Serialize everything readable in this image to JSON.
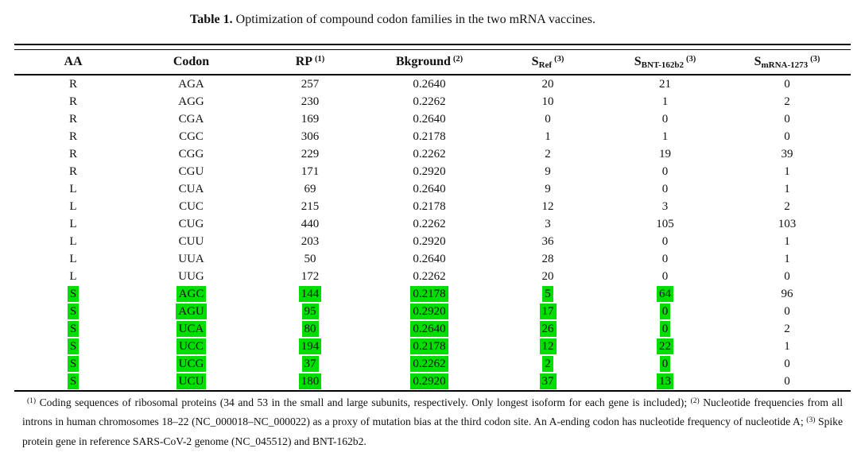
{
  "caption": {
    "label": "Table 1.",
    "text": " Optimization of compound codon families in the two mRNA vaccines."
  },
  "table": {
    "highlight_color": "#00dd00",
    "headers": [
      {
        "label": "AA"
      },
      {
        "label": "Codon"
      },
      {
        "label": "RP",
        "sup": "(1)"
      },
      {
        "label": "Bkground",
        "sup": "(2)"
      },
      {
        "label": "S",
        "sub": "Ref",
        "sup": "(3)"
      },
      {
        "label": "S",
        "sub": "BNT-162b2",
        "sup": "(3)"
      },
      {
        "label": "S",
        "sub": "mRNA-1273",
        "sup": "(3)"
      }
    ],
    "rows": [
      {
        "highlight": false,
        "cells": [
          "R",
          "AGA",
          "257",
          "0.2640",
          "20",
          "21",
          "0"
        ]
      },
      {
        "highlight": false,
        "cells": [
          "R",
          "AGG",
          "230",
          "0.2262",
          "10",
          "1",
          "2"
        ]
      },
      {
        "highlight": false,
        "cells": [
          "R",
          "CGA",
          "169",
          "0.2640",
          "0",
          "0",
          "0"
        ]
      },
      {
        "highlight": false,
        "cells": [
          "R",
          "CGC",
          "306",
          "0.2178",
          "1",
          "1",
          "0"
        ]
      },
      {
        "highlight": false,
        "cells": [
          "R",
          "CGG",
          "229",
          "0.2262",
          "2",
          "19",
          "39"
        ]
      },
      {
        "highlight": false,
        "cells": [
          "R",
          "CGU",
          "171",
          "0.2920",
          "9",
          "0",
          "1"
        ]
      },
      {
        "highlight": false,
        "cells": [
          "L",
          "CUA",
          "69",
          "0.2640",
          "9",
          "0",
          "1"
        ]
      },
      {
        "highlight": false,
        "cells": [
          "L",
          "CUC",
          "215",
          "0.2178",
          "12",
          "3",
          "2"
        ]
      },
      {
        "highlight": false,
        "cells": [
          "L",
          "CUG",
          "440",
          "0.2262",
          "3",
          "105",
          "103"
        ]
      },
      {
        "highlight": false,
        "cells": [
          "L",
          "CUU",
          "203",
          "0.2920",
          "36",
          "0",
          "1"
        ]
      },
      {
        "highlight": false,
        "cells": [
          "L",
          "UUA",
          "50",
          "0.2640",
          "28",
          "0",
          "1"
        ]
      },
      {
        "highlight": false,
        "cells": [
          "L",
          "UUG",
          "172",
          "0.2262",
          "20",
          "0",
          "0"
        ]
      },
      {
        "highlight": true,
        "cells": [
          "S",
          "AGC",
          "144",
          "0.2178",
          "5",
          "64",
          "96"
        ]
      },
      {
        "highlight": true,
        "cells": [
          "S",
          "AGU",
          "95",
          "0.2920",
          "17",
          "0",
          "0"
        ]
      },
      {
        "highlight": true,
        "cells": [
          "S",
          "UCA",
          "80",
          "0.2640",
          "26",
          "0",
          "2"
        ]
      },
      {
        "highlight": true,
        "cells": [
          "S",
          "UCC",
          "194",
          "0.2178",
          "12",
          "22",
          "1"
        ]
      },
      {
        "highlight": true,
        "cells": [
          "S",
          "UCG",
          "37",
          "0.2262",
          "2",
          "0",
          "0"
        ]
      },
      {
        "highlight": true,
        "cells": [
          "S",
          "UCU",
          "180",
          "0.2920",
          "37",
          "13",
          "0"
        ]
      }
    ]
  },
  "footnotes": {
    "marker1": "(1)",
    "text1": " Coding sequences of ribosomal proteins (34 and 53 in the small and large subunits, respectively. Only longest isoform for each gene is included); ",
    "marker2": "(2)",
    "text2": " Nucleotide frequencies from all introns in human chromosomes 18–22 (NC_000018–NC_000022) as a proxy of mutation bias at the third codon site. An A-ending codon has nucleotide frequency of nucleotide A; ",
    "marker3": "(3)",
    "text3": " Spike protein gene in reference SARS-CoV-2 genome (NC_045512) and BNT-162b2."
  }
}
